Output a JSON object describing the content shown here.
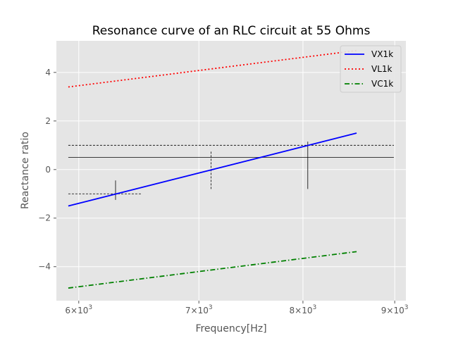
{
  "chart_data": {
    "type": "line",
    "title": "Resonance curve of an RLC circuit at 55 Ohms",
    "xlabel": "Frequency[Hz]",
    "ylabel": "Reactance ratio",
    "xscale": "log",
    "xlim": [
      5830,
      9130
    ],
    "ylim": [
      -5.4,
      5.3
    ],
    "grid": true,
    "legend_position": "top-right",
    "xticks": [
      {
        "value": 6000,
        "base": "6×10",
        "exp": "3"
      },
      {
        "value": 7000,
        "base": "7×10",
        "exp": "3"
      },
      {
        "value": 8000,
        "base": "8×10",
        "exp": "3"
      },
      {
        "value": 9000,
        "base": "9×10",
        "exp": "3"
      }
    ],
    "yticks": [
      {
        "value": -4,
        "label": "−4"
      },
      {
        "value": -2,
        "label": "−2"
      },
      {
        "value": 0,
        "label": "0"
      },
      {
        "value": 2,
        "label": "2"
      },
      {
        "value": 4,
        "label": "4"
      }
    ],
    "series": [
      {
        "name": "VX1k",
        "color": "#0000ff",
        "style": "solid",
        "x": [
          5920,
          8570
        ],
        "y": [
          -1.5,
          1.5
        ]
      },
      {
        "name": "VL1k",
        "color": "#ff0000",
        "style": "dotted",
        "x": [
          5920,
          8570
        ],
        "y": [
          3.4,
          4.9
        ]
      },
      {
        "name": "VC1k",
        "color": "#008000",
        "style": "dashdot",
        "x": [
          5920,
          8570
        ],
        "y": [
          -4.88,
          -3.38
        ]
      }
    ],
    "hlines": [
      {
        "y": 1.0,
        "x": [
          5920,
          8990
        ],
        "style": "dashed"
      },
      {
        "y": 0.5,
        "x": [
          5920,
          8990
        ],
        "style": "solid"
      },
      {
        "y": -1.0,
        "x": [
          5920,
          6500
        ],
        "style": "dashed"
      }
    ],
    "vlines": [
      {
        "x": 6290,
        "y": [
          -1.25,
          -0.45
        ],
        "style": "solid"
      },
      {
        "x": 7110,
        "y": [
          -0.8,
          0.75
        ],
        "style": "dashed"
      },
      {
        "x": 8050,
        "y": [
          -0.8,
          1.15
        ],
        "style": "solid"
      }
    ]
  }
}
